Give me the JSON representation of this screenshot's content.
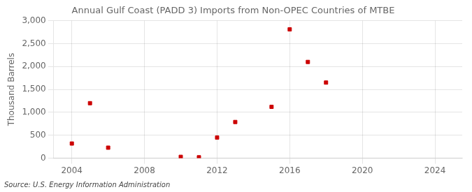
{
  "chart_data": {
    "type": "scatter",
    "title": "Annual Gulf Coast (PADD 3) Imports from Non-OPEC Countries of MTBE",
    "ylabel": "Thousand Barrels",
    "annotation": "Source: U.S. Energy Information Administration",
    "x": [
      2004,
      2005,
      2006,
      2010,
      2011,
      2012,
      2013,
      2015,
      2016,
      2017,
      2018
    ],
    "values": [
      320,
      1200,
      230,
      30,
      20,
      450,
      790,
      1120,
      2810,
      2100,
      1650
    ],
    "color": "#cc0000",
    "marker": "square",
    "xlim": [
      2003.0,
      2025.5
    ],
    "xticks": [
      2004,
      2008,
      2012,
      2016,
      2020,
      2024
    ],
    "ylim": [
      0,
      3000
    ],
    "yticks": [
      0,
      500,
      {
        "value": 1000,
        "label": "1,000"
      },
      {
        "value": 1500,
        "label": "1,500"
      },
      {
        "value": 2000,
        "label": "2,000"
      },
      {
        "value": 2500,
        "label": "2,500"
      },
      {
        "value": 3000,
        "label": "3,000"
      }
    ],
    "grid": true
  }
}
